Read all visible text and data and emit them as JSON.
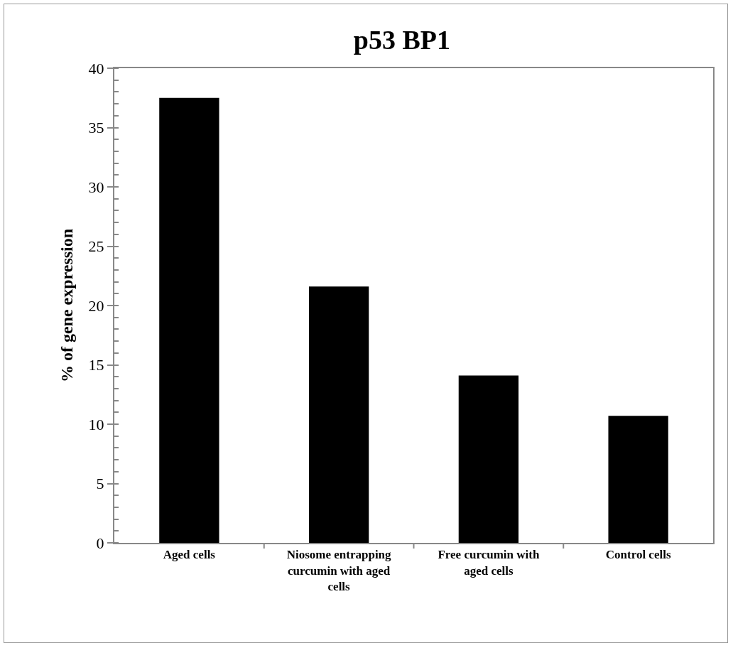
{
  "chart_data": {
    "type": "bar",
    "title": "p53 BP1",
    "ylabel": "% of gene expression",
    "categories": [
      "Aged cells",
      "Niosome entrapping curcumin with aged cells",
      "Free curcumin with aged cells",
      "Control cells"
    ],
    "values": [
      37.5,
      21.6,
      14.1,
      10.7
    ],
    "color": "#000000",
    "ylim": [
      0,
      40
    ],
    "yticks": [
      0,
      5,
      10,
      15,
      20,
      25,
      30,
      35,
      40
    ],
    "grid": false
  }
}
